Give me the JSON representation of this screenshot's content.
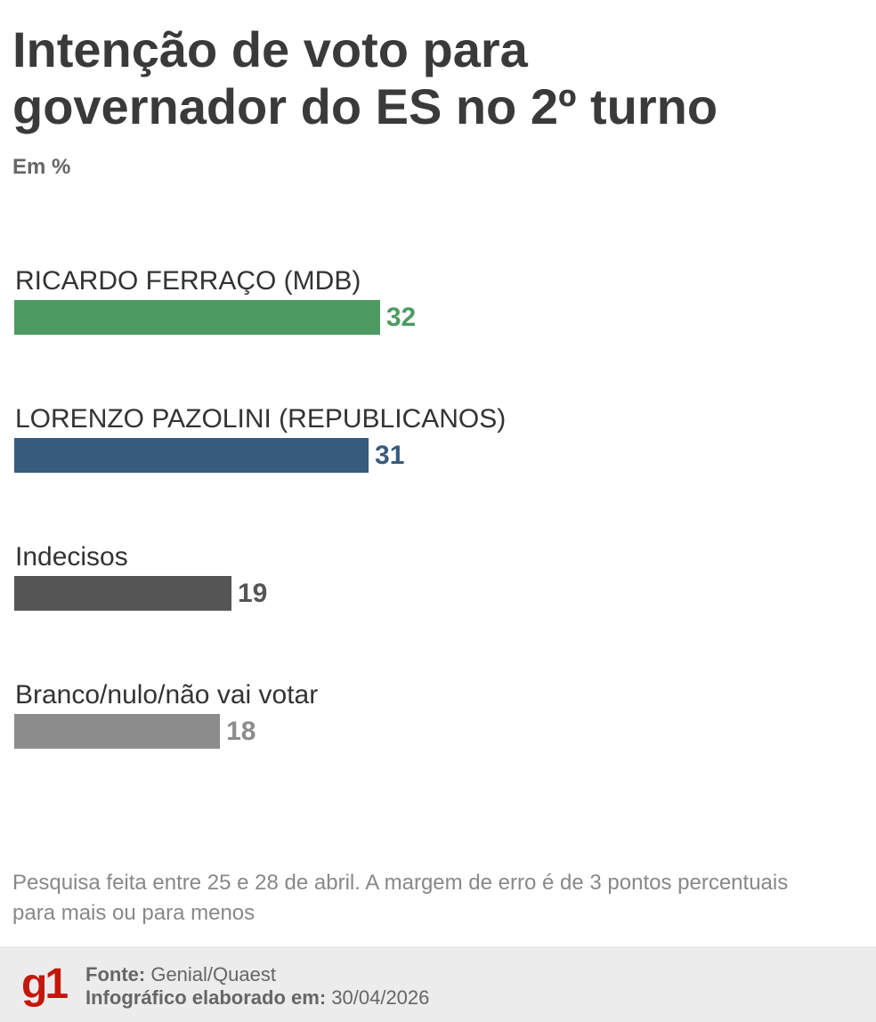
{
  "chart_data": {
    "type": "bar",
    "title": "Intenção de voto para governador do ES no 2º turno",
    "subtitle": "Em %",
    "categories": [
      "RICARDO FERRAÇO (MDB)",
      "LORENZO PAZOLINI (REPUBLICANOS)",
      "Indecisos",
      "Branco/nulo/não vai votar"
    ],
    "values": [
      32,
      31,
      19,
      18
    ],
    "colors": [
      "#4e9a63",
      "#375b7d",
      "#555555",
      "#8c8c8c"
    ],
    "note": "Pesquisa feita entre 25 e 28 de abril. A margem de erro é de 3 pontos percentuais para mais ou para menos"
  },
  "footer": {
    "logo": "g1",
    "source_label": "Fonte:",
    "source": "Genial/Quaest",
    "date_label": "Infográfico elaborado em:",
    "date": "30/04/2026"
  }
}
